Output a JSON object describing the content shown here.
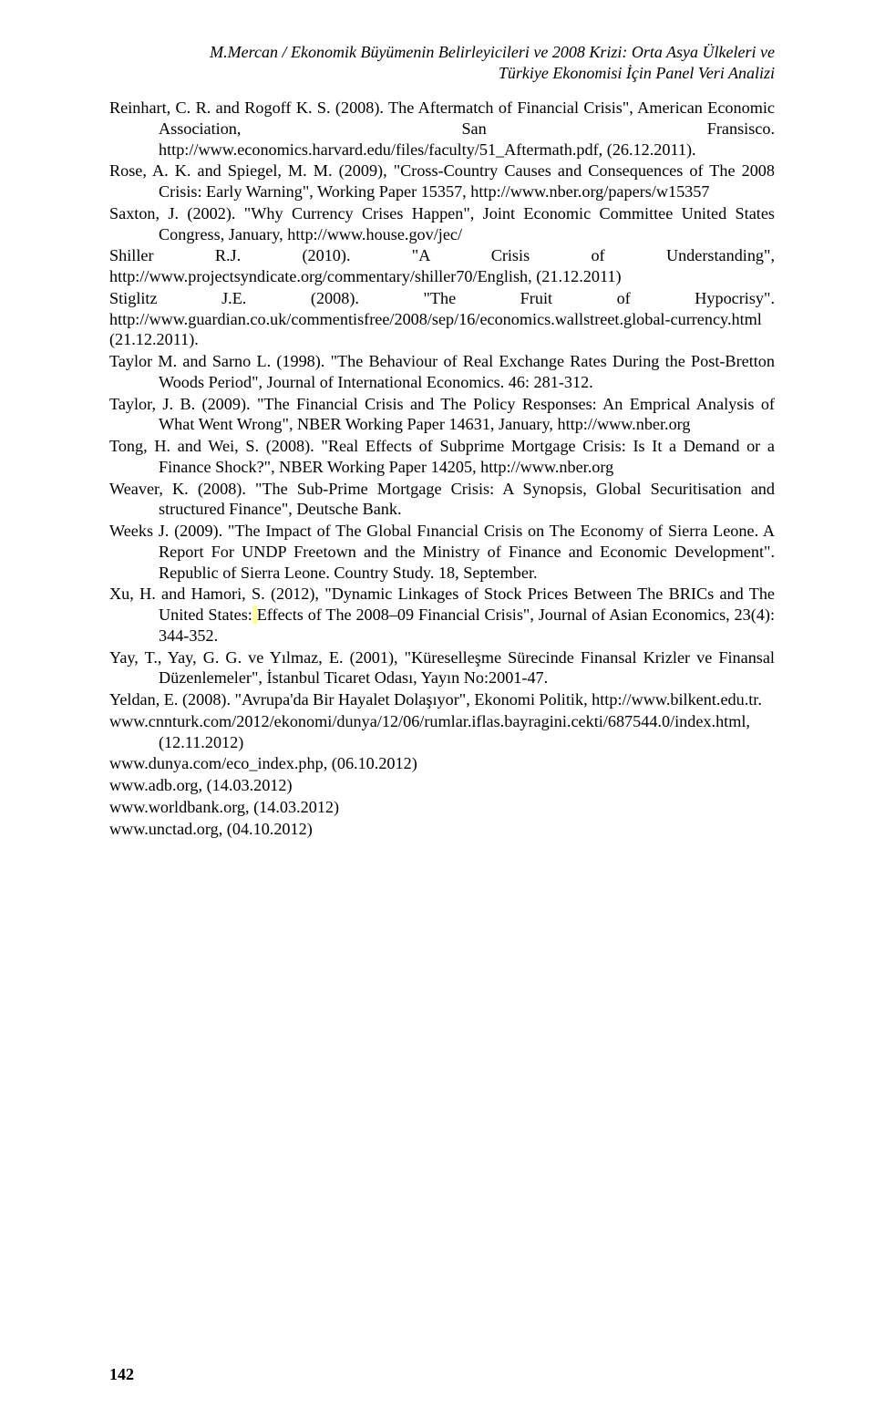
{
  "running_head": {
    "line1": "M.Mercan / Ekonomik Büyümenin Belirleyicileri ve 2008 Krizi: Orta Asya Ülkeleri ve",
    "line2": "Türkiye Ekonomisi İçin Panel Veri Analizi"
  },
  "refs": {
    "reinhart": "Reinhart, C. R. and Rogoff K. S. (2008). The Aftermatch of Financial Crisis\", American Economic Association, San Fransisco. http://www.economics.harvard.edu/files/faculty/51_Aftermath.pdf, (26.12.2011).",
    "rose": "Rose, A. K. and Spiegel, M. M. (2009), \"Cross-Country Causes and Consequences of The 2008 Crisis: Early Warning\", Working Paper 15357, http://www.nber.org/papers/w15357",
    "saxton": "Saxton, J. (2002). \"Why Currency Crises Happen\", Joint Economic Committee United States Congress, January, http://www.house.gov/jec/",
    "shiller": "Shiller R.J. (2010). \"A Crisis of Understanding\", http://www.projectsyndicate.org/commentary/shiller70/English, (21.12.2011)",
    "stiglitz": "Stiglitz J.E. (2008). \"The Fruit of Hypocrisy\". http://www.guardian.co.uk/commentisfree/2008/sep/16/economics.wallstreet.global-currency.html (21.12.2011).",
    "taylorm": "Taylor M. and Sarno L. (1998). \"The Behaviour of Real Exchange Rates During the Post-Bretton Woods Period\", Journal of International Economics. 46: 281-312.",
    "taylorj": "Taylor, J. B. (2009). \"The Financial Crisis and The Policy Responses: An Emprical Analysis of What Went Wrong\",  NBER Working Paper 14631, January, http://www.nber.org",
    "tong": "Tong, H. and Wei, S. (2008). \"Real Effects of Subprime Mortgage Crisis: Is It a Demand or a Finance Shock?\", NBER Working Paper 14205, http://www.nber.org",
    "weaver": "Weaver, K. (2008). \"The Sub-Prime Mortgage Crisis: A Synopsis, Global Securitisation and structured Finance\", Deutsche Bank.",
    "weeks": "Weeks J. (2009). \"The Impact of The Global Fınancial Crisis on The Economy of Sierra Leone. A Report For UNDP Freetown and the Ministry of Finance and Economic Development\". Republic of Sierra Leone. Country Study. 18, September.",
    "xu_pre": "Xu, H. and Hamori, S. (2012), \"Dynamic Linkages of Stock Prices Between The BRICs and The United States:",
    "xu_hl": " ",
    "xu_post": "Effects of The 2008–09 Financial Crisis\", Journal of Asian Economics, 23(4): 344-352.",
    "yay": "Yay, T., Yay, G. G. ve Yılmaz, E. (2001), \"Küreselleşme Sürecinde Finansal Krizler ve Finansal Düzenlemeler\", İstanbul Ticaret Odası, Yayın No:2001-47.",
    "yeldan": "Yeldan, E. (2008). \"Avrupa'da Bir Hayalet Dolaşıyor\",  Ekonomi Politik, http://www.bilkent.edu.tr.",
    "cnn": "www.cnnturk.com/2012/ekonomi/dunya/12/06/rumlar.iflas.bayragini.cekti/687544.0/index.html, (12.11.2012)",
    "dunya": "www.dunya.com/eco_index.php, (06.10.2012)",
    "adb": "www.adb.org, (14.03.2012)",
    "worldbank": "www.worldbank.org, (14.03.2012)",
    "unctad": "www.unctad.org, (04.10.2012)"
  },
  "page_number": "142"
}
